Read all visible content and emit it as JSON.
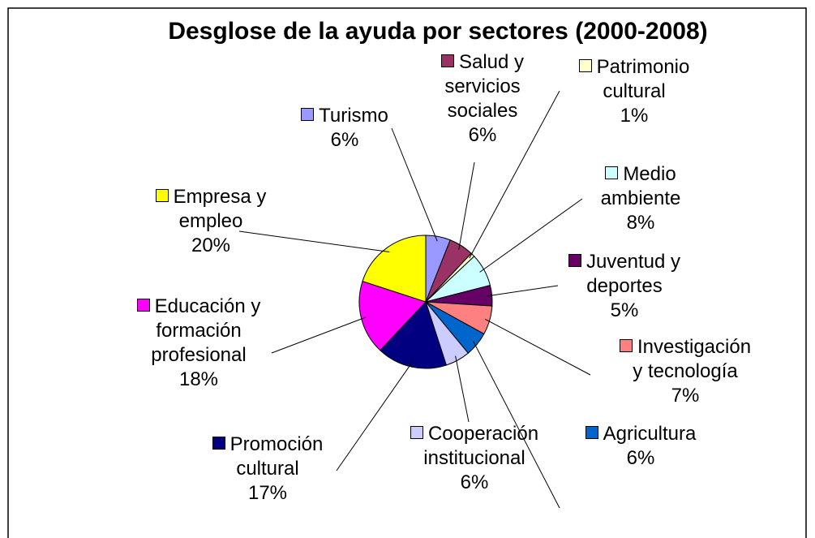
{
  "chart_data": {
    "type": "pie",
    "title": "Desglose de la ayuda por sectores (2000-2008)",
    "categories": [
      "Turismo",
      "Salud y servicios sociales",
      "Patrimonio cultural",
      "Medio ambiente",
      "Juventud y deportes",
      "Investigación y tecnología",
      "Agricultura",
      "Cooperación institucional",
      "Promoción cultural",
      "Educación y formación profesional",
      "Empresa y empleo"
    ],
    "values": [
      6,
      6,
      1,
      8,
      5,
      7,
      6,
      6,
      17,
      18,
      20
    ],
    "value_labels": [
      "6%",
      "6%",
      "1%",
      "8%",
      "5%",
      "7%",
      "6%",
      "6%",
      "17%",
      "18%",
      "20%"
    ],
    "colors": [
      "#9999ff",
      "#993366",
      "#ffffcc",
      "#ccffff",
      "#660066",
      "#ff8080",
      "#0066cc",
      "#ccccff",
      "#000080",
      "#ff00ff",
      "#ffff00"
    ]
  }
}
